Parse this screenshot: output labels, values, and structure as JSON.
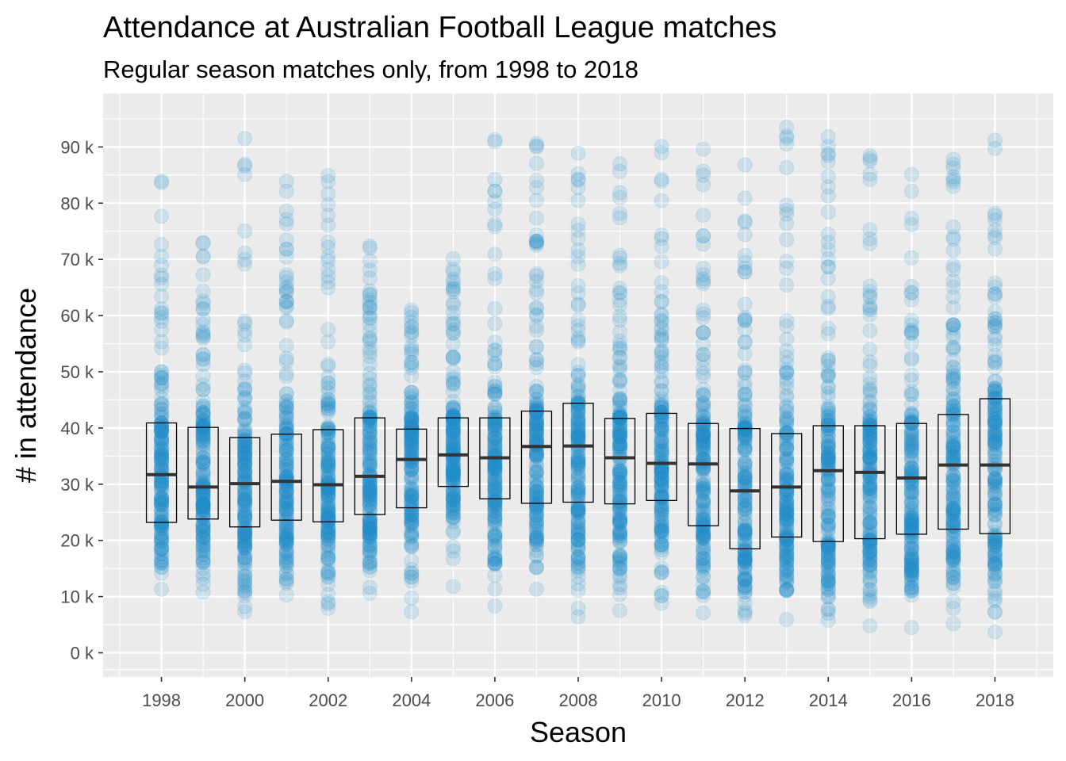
{
  "chart_data": {
    "type": "boxplot",
    "title": "Attendance at Australian Football League matches",
    "subtitle": "Regular season matches only, from 1998 to 2018",
    "xlabel": "Season",
    "ylabel": "# in attendance",
    "xlim": [
      1996.6,
      2019.4
    ],
    "ylim": [
      -4300,
      99500
    ],
    "x_ticks": [
      1998,
      2000,
      2002,
      2004,
      2006,
      2008,
      2010,
      2012,
      2014,
      2016,
      2018
    ],
    "x_tick_labels": [
      "1998",
      "2000",
      "2002",
      "2004",
      "2006",
      "2008",
      "2010",
      "2012",
      "2014",
      "2016",
      "2018"
    ],
    "y_ticks": [
      0,
      10000,
      20000,
      30000,
      40000,
      50000,
      60000,
      70000,
      80000,
      90000
    ],
    "y_tick_labels": [
      "0 k",
      "10 k",
      "20 k",
      "30 k",
      "40 k",
      "50 k",
      "60 k",
      "70 k",
      "80 k",
      "90 k"
    ],
    "grid": true,
    "legend": "none",
    "point_color": "#1f8ac6",
    "point_alpha": 0.15,
    "panel_background": "#ebebeb",
    "box_stroke": "#000000",
    "seasons": [
      {
        "season": 1998,
        "q1": 23200,
        "median": 31700,
        "q3": 40900,
        "min": 11300,
        "max": 83900,
        "outliers": []
      },
      {
        "season": 1999,
        "q1": 23800,
        "median": 29500,
        "q3": 40100,
        "min": 10800,
        "max": 73000,
        "outliers": []
      },
      {
        "season": 2000,
        "q1": 22400,
        "median": 30100,
        "q3": 38300,
        "min": 7300,
        "max": 91500,
        "outliers": []
      },
      {
        "season": 2001,
        "q1": 23600,
        "median": 30500,
        "q3": 38900,
        "min": 10300,
        "max": 83900,
        "outliers": []
      },
      {
        "season": 2002,
        "q1": 23300,
        "median": 29900,
        "q3": 39700,
        "min": 7900,
        "max": 84900,
        "outliers": []
      },
      {
        "season": 2003,
        "q1": 24600,
        "median": 31400,
        "q3": 41800,
        "min": 10600,
        "max": 72400,
        "outliers": []
      },
      {
        "season": 2004,
        "q1": 25800,
        "median": 34400,
        "q3": 39800,
        "min": 7300,
        "max": 61000,
        "outliers": []
      },
      {
        "season": 2005,
        "q1": 29600,
        "median": 35200,
        "q3": 41800,
        "min": 11800,
        "max": 70100,
        "outliers": []
      },
      {
        "season": 2006,
        "q1": 27400,
        "median": 34700,
        "q3": 41800,
        "min": 8300,
        "max": 91300,
        "outliers": []
      },
      {
        "season": 2007,
        "q1": 26600,
        "median": 36700,
        "q3": 43000,
        "min": 11300,
        "max": 90600,
        "outliers": []
      },
      {
        "season": 2008,
        "q1": 26800,
        "median": 36800,
        "q3": 44400,
        "min": 6400,
        "max": 88900,
        "outliers": []
      },
      {
        "season": 2009,
        "q1": 26500,
        "median": 34700,
        "q3": 41700,
        "min": 7500,
        "max": 87000,
        "outliers": []
      },
      {
        "season": 2010,
        "q1": 27100,
        "median": 33700,
        "q3": 42600,
        "min": 8800,
        "max": 90100,
        "outliers": []
      },
      {
        "season": 2011,
        "q1": 22600,
        "median": 33600,
        "q3": 40800,
        "min": 7100,
        "max": 89600,
        "outliers": []
      },
      {
        "season": 2012,
        "q1": 18500,
        "median": 28800,
        "q3": 39900,
        "min": 6600,
        "max": 86800,
        "outliers": []
      },
      {
        "season": 2013,
        "q1": 20600,
        "median": 29500,
        "q3": 39000,
        "min": 5900,
        "max": 93500,
        "outliers": []
      },
      {
        "season": 2014,
        "q1": 19800,
        "median": 32400,
        "q3": 40400,
        "min": 5800,
        "max": 91800,
        "outliers": []
      },
      {
        "season": 2015,
        "q1": 20300,
        "median": 32100,
        "q3": 40400,
        "min": 4800,
        "max": 88400,
        "outliers": []
      },
      {
        "season": 2016,
        "q1": 21100,
        "median": 31100,
        "q3": 40800,
        "min": 4500,
        "max": 85100,
        "outliers": []
      },
      {
        "season": 2017,
        "q1": 22000,
        "median": 33400,
        "q3": 42400,
        "min": 5200,
        "max": 87800,
        "outliers": []
      },
      {
        "season": 2018,
        "q1": 21200,
        "median": 33400,
        "q3": 45200,
        "min": 3700,
        "max": 91200,
        "outliers": []
      }
    ]
  }
}
